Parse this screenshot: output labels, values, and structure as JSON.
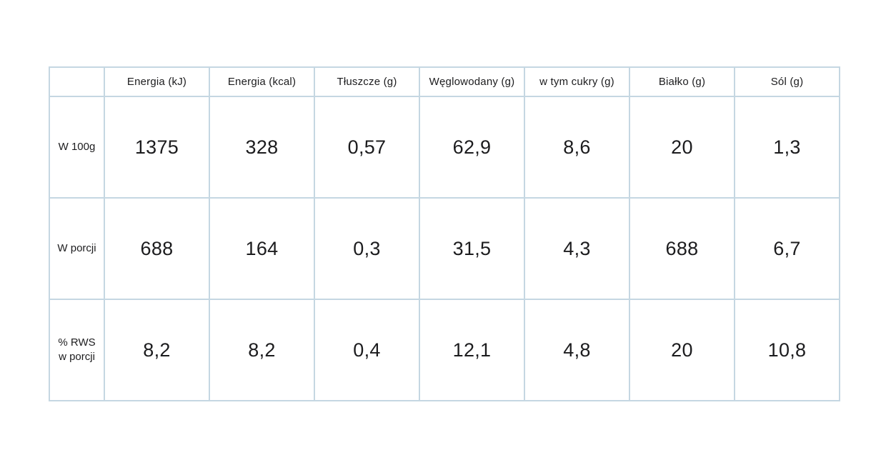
{
  "colors": {
    "border": "#c5d7e2",
    "text": "#1c1c1e",
    "background": "#ffffff"
  },
  "table": {
    "columns": [
      "",
      "Energia (kJ)",
      "Energia (kcal)",
      "Tłuszcze (g)",
      "Węglowodany (g)",
      "w tym cukry (g)",
      "Białko (g)",
      "Sól (g)"
    ],
    "rows": [
      {
        "label": "W 100g",
        "values": [
          "1375",
          "328",
          "0,57",
          "62,9",
          "8,6",
          "20",
          "1,3"
        ]
      },
      {
        "label": "W porcji",
        "values": [
          "688",
          "164",
          "0,3",
          "31,5",
          "4,3",
          "688",
          "6,7"
        ]
      },
      {
        "label": "% RWS\nw porcji",
        "values": [
          "8,2",
          "8,2",
          "0,4",
          "12,1",
          "4,8",
          "20",
          "10,8"
        ]
      }
    ]
  },
  "chart_data": {
    "type": "table",
    "columns": [
      "",
      "Energia (kJ)",
      "Energia (kcal)",
      "Tłuszcze (g)",
      "Węglowodany (g)",
      "w tym cukry (g)",
      "Białko (g)",
      "Sól (g)"
    ],
    "rows": [
      [
        "W 100g",
        "1375",
        "328",
        "0,57",
        "62,9",
        "8,6",
        "20",
        "1,3"
      ],
      [
        "W porcji",
        "688",
        "164",
        "0,3",
        "31,5",
        "4,3",
        "688",
        "6,7"
      ],
      [
        "% RWS w porcji",
        "8,2",
        "8,2",
        "0,4",
        "12,1",
        "4,8",
        "20",
        "10,8"
      ]
    ],
    "notes": "Polish nutrition facts table; decimal commas; grid borders light blue (#c5d7e2); white background"
  }
}
